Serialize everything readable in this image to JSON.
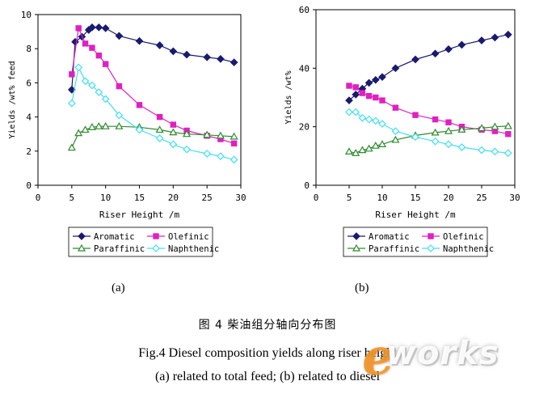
{
  "chart_data": [
    {
      "id": "a",
      "type": "line",
      "xlabel": "Riser Height /m",
      "ylabel": "Yields /wt% feed",
      "xlim": [
        0,
        30
      ],
      "ylim": [
        0,
        10
      ],
      "xticks": [
        0,
        5,
        10,
        15,
        20,
        25,
        30
      ],
      "yticks": [
        0,
        2,
        4,
        6,
        8,
        10
      ],
      "legend_position": "bottom",
      "series": [
        {
          "name": "Aromatic",
          "marker": "diamond",
          "color": "#1a1a6e",
          "x": [
            5,
            5.5,
            6.5,
            7.5,
            8,
            9,
            10,
            12,
            15,
            18,
            20,
            22,
            25,
            27,
            29
          ],
          "y": [
            5.6,
            8.4,
            8.7,
            9.1,
            9.25,
            9.25,
            9.2,
            8.75,
            8.45,
            8.2,
            7.85,
            7.65,
            7.5,
            7.4,
            7.2
          ]
        },
        {
          "name": "Olefinic",
          "marker": "square",
          "color": "#e020c0",
          "x": [
            5,
            6,
            7,
            8,
            9,
            10,
            12,
            15,
            18,
            20,
            22,
            25,
            27,
            29
          ],
          "y": [
            6.5,
            9.2,
            8.3,
            8.05,
            7.6,
            7.1,
            5.8,
            4.7,
            4.0,
            3.55,
            3.2,
            2.9,
            2.7,
            2.45
          ]
        },
        {
          "name": "Paraffinic",
          "marker": "triangle",
          "color": "#2e8b2e",
          "x": [
            5,
            6,
            7,
            8,
            9,
            10,
            12,
            15,
            18,
            20,
            22,
            25,
            27,
            29
          ],
          "y": [
            2.2,
            3.05,
            3.25,
            3.4,
            3.45,
            3.45,
            3.45,
            3.4,
            3.25,
            3.1,
            3.0,
            2.95,
            2.9,
            2.85
          ]
        },
        {
          "name": "Naphthenic",
          "marker": "diamond-open",
          "color": "#40e0f0",
          "x": [
            5,
            6,
            7,
            8,
            9,
            10,
            12,
            15,
            18,
            20,
            22,
            25,
            27,
            29
          ],
          "y": [
            4.8,
            6.9,
            6.1,
            5.85,
            5.45,
            5.05,
            4.1,
            3.25,
            2.75,
            2.4,
            2.1,
            1.85,
            1.7,
            1.5
          ]
        }
      ]
    },
    {
      "id": "b",
      "type": "line",
      "xlabel": "Riser Height /m",
      "ylabel": "Yields /wt%",
      "xlim": [
        0,
        30
      ],
      "ylim": [
        0,
        60
      ],
      "xticks": [
        0,
        5,
        10,
        15,
        20,
        25,
        30
      ],
      "yticks": [
        0,
        20,
        40,
        60
      ],
      "legend_position": "bottom",
      "series": [
        {
          "name": "Aromatic",
          "marker": "diamond",
          "color": "#1a1a6e",
          "x": [
            5,
            6,
            7,
            8,
            9,
            10,
            12,
            15,
            18,
            20,
            22,
            25,
            27,
            29
          ],
          "y": [
            29,
            31,
            33,
            35,
            36,
            37,
            40,
            43,
            45,
            46.5,
            48,
            49.5,
            50.5,
            51.5
          ]
        },
        {
          "name": "Olefinic",
          "marker": "square",
          "color": "#e020c0",
          "x": [
            5,
            6,
            7,
            8,
            9,
            10,
            12,
            15,
            18,
            20,
            22,
            25,
            27,
            29
          ],
          "y": [
            34,
            33.5,
            31.5,
            30.5,
            30,
            29,
            26.5,
            24,
            22.5,
            21.5,
            20,
            19,
            18.5,
            17.5
          ]
        },
        {
          "name": "Paraffinic",
          "marker": "triangle",
          "color": "#2e8b2e",
          "x": [
            5,
            6,
            7,
            8,
            9,
            10,
            12,
            15,
            18,
            20,
            22,
            25,
            27,
            29
          ],
          "y": [
            11.5,
            11,
            12,
            12.5,
            13.5,
            14,
            15.5,
            17,
            18,
            18.5,
            19,
            19.5,
            20,
            20.2
          ]
        },
        {
          "name": "Naphthenic",
          "marker": "diamond-open",
          "color": "#40e0f0",
          "x": [
            5,
            6,
            7,
            8,
            9,
            10,
            12,
            15,
            18,
            20,
            22,
            25,
            27,
            29
          ],
          "y": [
            25,
            25,
            23,
            22.5,
            22,
            21,
            18.5,
            16.5,
            15,
            14,
            13,
            12,
            11.5,
            11
          ]
        }
      ]
    }
  ],
  "panel_labels": {
    "a": "(a)",
    "b": "(b)"
  },
  "caption": {
    "chinese": "图 4  柴油组分轴向分布图",
    "english": "Fig.4 Diesel composition yields along riser height",
    "subtitle": "(a) related to total feed; (b) related to diesel"
  },
  "watermark": {
    "e": "e",
    "text": "works"
  }
}
